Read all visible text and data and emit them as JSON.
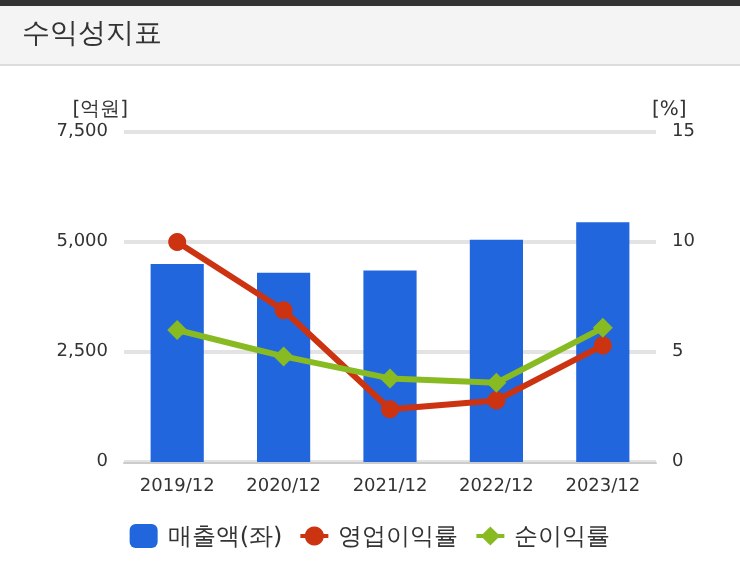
{
  "chart_data": {
    "type": "bar",
    "title": "수익성지표",
    "ylabel": "[억원]",
    "y2label": "[%]",
    "categories": [
      "2019/12",
      "2020/12",
      "2021/12",
      "2022/12",
      "2023/12"
    ],
    "series": [
      {
        "name": "매출액(좌)",
        "color": "#2266dd",
        "values": [
          4500,
          4300,
          4350,
          5050,
          5450
        ]
      },
      {
        "name": "영업이익률",
        "type": "line",
        "axis": "y2",
        "color": "#cc3311",
        "marker": "circle",
        "values": [
          10,
          6.9,
          2.4,
          2.8,
          5.3
        ]
      },
      {
        "name": "순이익률",
        "type": "line",
        "axis": "y2",
        "color": "#88bb22",
        "marker": "diamond",
        "values": [
          6,
          4.8,
          3.8,
          3.6,
          6.1
        ]
      }
    ],
    "ylim": [
      0,
      7500
    ],
    "yticks": [
      0,
      {
        "value": 2500,
        "label": "2,500"
      },
      {
        "value": 5000,
        "label": "5,000"
      },
      {
        "value": 7500,
        "label": "7,500"
      }
    ],
    "y2lim": [
      0,
      15
    ],
    "y2ticks": [
      0,
      5,
      10,
      15
    ],
    "grid": "y",
    "legend": "bottom"
  }
}
